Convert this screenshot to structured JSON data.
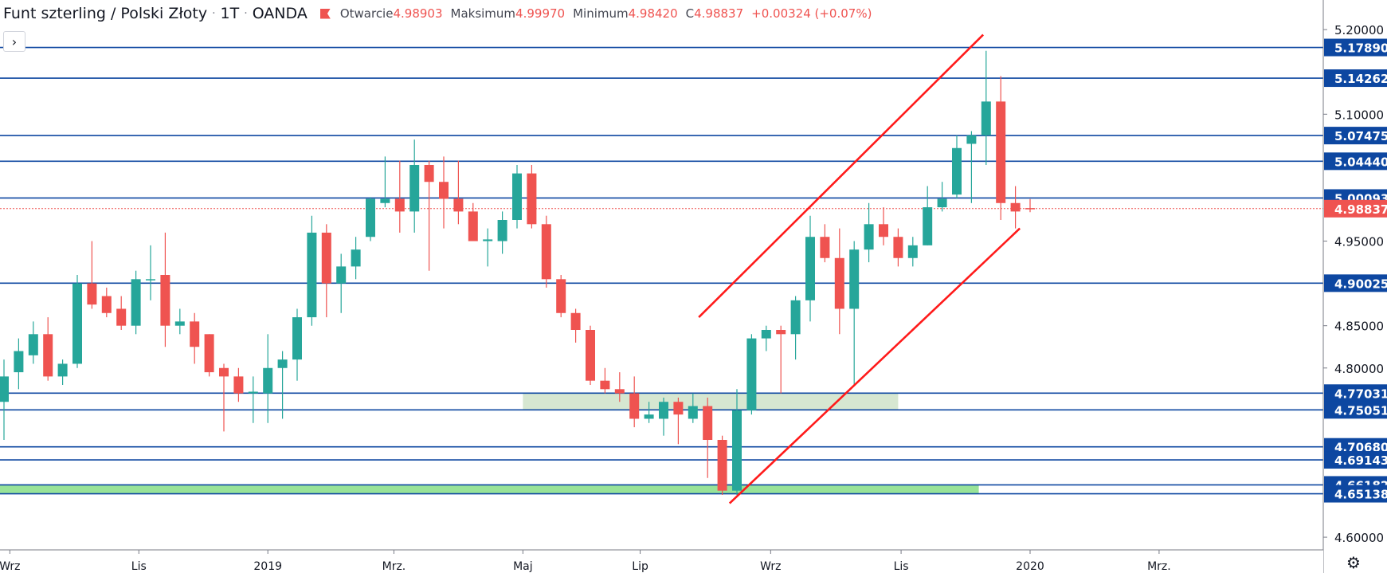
{
  "legend": {
    "symbol_name": "Funt szterling / Polski Złoty",
    "interval": "1T",
    "source": "OANDA",
    "open_label": "Otwarcie",
    "open_value": "4.98903",
    "high_label": "Maksimum",
    "high_value": "4.99970",
    "low_label": "Minimum",
    "low_value": "4.98420",
    "close_label": "C",
    "close_value": "4.98837",
    "change": "+0.00324 (+0.07%)"
  },
  "toolbar": {
    "toggle_icon": "chevron-right-icon",
    "settings_icon": "gear-icon"
  },
  "colors": {
    "up": "#26a69a",
    "down": "#ef5350",
    "hline": "#0d47a1",
    "trend": "#ff1a1a",
    "zone_support": "#8de08d",
    "zone_gray": "#c8dfc2"
  },
  "chart_data": {
    "type": "candlestick",
    "ylim": [
      4.585,
      5.235
    ],
    "y_ticks": [
      "5.20000",
      "5.10000",
      "4.95000",
      "4.85000",
      "4.80000",
      "4.60000"
    ],
    "x_labels": [
      {
        "label": "Wrz",
        "idx": 0.4
      },
      {
        "label": "Lis",
        "idx": 9.2
      },
      {
        "label": "2019",
        "idx": 18.0
      },
      {
        "label": "Mrz.",
        "idx": 26.6
      },
      {
        "label": "Maj",
        "idx": 35.4
      },
      {
        "label": "Lip",
        "idx": 43.4
      },
      {
        "label": "Wrz",
        "idx": 52.3
      },
      {
        "label": "Lis",
        "idx": 61.2
      },
      {
        "label": "2020",
        "idx": 70.0
      },
      {
        "label": "Mrz.",
        "idx": 78.8
      }
    ],
    "candles": [
      {
        "o": 4.76,
        "h": 4.81,
        "l": 4.715,
        "c": 4.79
      },
      {
        "o": 4.795,
        "h": 4.835,
        "l": 4.775,
        "c": 4.82
      },
      {
        "o": 4.815,
        "h": 4.855,
        "l": 4.805,
        "c": 4.84
      },
      {
        "o": 4.84,
        "h": 4.86,
        "l": 4.785,
        "c": 4.79
      },
      {
        "o": 4.79,
        "h": 4.81,
        "l": 4.78,
        "c": 4.805
      },
      {
        "o": 4.805,
        "h": 4.91,
        "l": 4.8,
        "c": 4.9
      },
      {
        "o": 4.9,
        "h": 4.95,
        "l": 4.87,
        "c": 4.875
      },
      {
        "o": 4.885,
        "h": 4.895,
        "l": 4.86,
        "c": 4.865
      },
      {
        "o": 4.87,
        "h": 4.885,
        "l": 4.845,
        "c": 4.85
      },
      {
        "o": 4.85,
        "h": 4.915,
        "l": 4.84,
        "c": 4.905
      },
      {
        "o": 4.905,
        "h": 4.945,
        "l": 4.88,
        "c": 4.905
      },
      {
        "o": 4.91,
        "h": 4.96,
        "l": 4.825,
        "c": 4.85
      },
      {
        "o": 4.85,
        "h": 4.87,
        "l": 4.84,
        "c": 4.855
      },
      {
        "o": 4.855,
        "h": 4.865,
        "l": 4.805,
        "c": 4.825
      },
      {
        "o": 4.84,
        "h": 4.84,
        "l": 4.79,
        "c": 4.795
      },
      {
        "o": 4.8,
        "h": 4.805,
        "l": 4.725,
        "c": 4.79
      },
      {
        "o": 4.79,
        "h": 4.8,
        "l": 4.76,
        "c": 4.77
      },
      {
        "o": 4.77,
        "h": 4.79,
        "l": 4.735,
        "c": 4.772
      },
      {
        "o": 4.77,
        "h": 4.84,
        "l": 4.735,
        "c": 4.8
      },
      {
        "o": 4.8,
        "h": 4.82,
        "l": 4.74,
        "c": 4.81
      },
      {
        "o": 4.81,
        "h": 4.87,
        "l": 4.785,
        "c": 4.86
      },
      {
        "o": 4.86,
        "h": 4.98,
        "l": 4.85,
        "c": 4.96
      },
      {
        "o": 4.96,
        "h": 4.97,
        "l": 4.86,
        "c": 4.9
      },
      {
        "o": 4.9,
        "h": 4.935,
        "l": 4.865,
        "c": 4.92
      },
      {
        "o": 4.92,
        "h": 4.955,
        "l": 4.905,
        "c": 4.94
      },
      {
        "o": 4.955,
        "h": 5.002,
        "l": 4.95,
        "c": 5.0
      },
      {
        "o": 4.995,
        "h": 5.05,
        "l": 4.99,
        "c": 5.0
      },
      {
        "o": 5.0,
        "h": 5.045,
        "l": 4.96,
        "c": 4.985
      },
      {
        "o": 4.985,
        "h": 5.07,
        "l": 4.96,
        "c": 5.04
      },
      {
        "o": 5.04,
        "h": 5.045,
        "l": 4.915,
        "c": 5.02
      },
      {
        "o": 5.02,
        "h": 5.05,
        "l": 4.965,
        "c": 5.0
      },
      {
        "o": 5.0,
        "h": 5.045,
        "l": 4.97,
        "c": 4.985
      },
      {
        "o": 4.985,
        "h": 4.995,
        "l": 4.955,
        "c": 4.95
      },
      {
        "o": 4.95,
        "h": 4.965,
        "l": 4.92,
        "c": 4.952
      },
      {
        "o": 4.95,
        "h": 4.985,
        "l": 4.935,
        "c": 4.975
      },
      {
        "o": 4.975,
        "h": 5.04,
        "l": 4.965,
        "c": 5.03
      },
      {
        "o": 5.03,
        "h": 5.04,
        "l": 4.965,
        "c": 4.97
      },
      {
        "o": 4.97,
        "h": 4.98,
        "l": 4.895,
        "c": 4.905
      },
      {
        "o": 4.905,
        "h": 4.91,
        "l": 4.86,
        "c": 4.865
      },
      {
        "o": 4.865,
        "h": 4.87,
        "l": 4.83,
        "c": 4.845
      },
      {
        "o": 4.845,
        "h": 4.85,
        "l": 4.78,
        "c": 4.785
      },
      {
        "o": 4.785,
        "h": 4.8,
        "l": 4.77,
        "c": 4.775
      },
      {
        "o": 4.775,
        "h": 4.795,
        "l": 4.76,
        "c": 4.77
      },
      {
        "o": 4.77,
        "h": 4.79,
        "l": 4.73,
        "c": 4.74
      },
      {
        "o": 4.74,
        "h": 4.76,
        "l": 4.735,
        "c": 4.745
      },
      {
        "o": 4.74,
        "h": 4.765,
        "l": 4.72,
        "c": 4.76
      },
      {
        "o": 4.76,
        "h": 4.765,
        "l": 4.71,
        "c": 4.745
      },
      {
        "o": 4.74,
        "h": 4.77,
        "l": 4.735,
        "c": 4.755
      },
      {
        "o": 4.755,
        "h": 4.765,
        "l": 4.67,
        "c": 4.715
      },
      {
        "o": 4.715,
        "h": 4.72,
        "l": 4.65,
        "c": 4.655
      },
      {
        "o": 4.655,
        "h": 4.775,
        "l": 4.65,
        "c": 4.75
      },
      {
        "o": 4.75,
        "h": 4.84,
        "l": 4.745,
        "c": 4.835
      },
      {
        "o": 4.835,
        "h": 4.85,
        "l": 4.82,
        "c": 4.845
      },
      {
        "o": 4.845,
        "h": 4.85,
        "l": 4.77,
        "c": 4.84
      },
      {
        "o": 4.84,
        "h": 4.885,
        "l": 4.81,
        "c": 4.88
      },
      {
        "o": 4.88,
        "h": 4.98,
        "l": 4.855,
        "c": 4.955
      },
      {
        "o": 4.955,
        "h": 4.97,
        "l": 4.925,
        "c": 4.93
      },
      {
        "o": 4.93,
        "h": 4.965,
        "l": 4.84,
        "c": 4.87
      },
      {
        "o": 4.87,
        "h": 4.95,
        "l": 4.78,
        "c": 4.94
      },
      {
        "o": 4.94,
        "h": 4.995,
        "l": 4.925,
        "c": 4.97
      },
      {
        "o": 4.97,
        "h": 4.99,
        "l": 4.945,
        "c": 4.955
      },
      {
        "o": 4.955,
        "h": 4.965,
        "l": 4.92,
        "c": 4.93
      },
      {
        "o": 4.93,
        "h": 4.955,
        "l": 4.92,
        "c": 4.945
      },
      {
        "o": 4.945,
        "h": 5.015,
        "l": 4.945,
        "c": 4.99
      },
      {
        "o": 4.99,
        "h": 5.02,
        "l": 4.985,
        "c": 5.0
      },
      {
        "o": 5.005,
        "h": 5.075,
        "l": 5.0,
        "c": 5.06
      },
      {
        "o": 5.065,
        "h": 5.08,
        "l": 4.995,
        "c": 5.075
      },
      {
        "o": 5.075,
        "h": 5.175,
        "l": 5.04,
        "c": 5.115
      },
      {
        "o": 5.115,
        "h": 5.145,
        "l": 4.975,
        "c": 4.995
      },
      {
        "o": 4.995,
        "h": 5.015,
        "l": 4.965,
        "c": 4.985
      },
      {
        "o": 4.989,
        "h": 4.9997,
        "l": 4.9842,
        "c": 4.98837
      }
    ],
    "horizontal_levels": [
      "5.17890",
      "5.14262",
      "5.07475",
      "5.04440",
      "5.00093",
      "4.90025",
      "4.77031",
      "4.75051",
      "4.70680",
      "4.69143",
      "4.66182",
      "4.65138"
    ],
    "current_price": "4.98837",
    "zones": [
      {
        "name": "gray-zone",
        "from_idx": 35.4,
        "to_idx": 61.0,
        "y_low": 4.75051,
        "y_high": 4.77031
      },
      {
        "name": "support-zone",
        "from_idx": -1,
        "to_idx": 66.5,
        "y_low": 4.65138,
        "y_high": 4.66182
      }
    ],
    "trendlines": [
      {
        "name": "channel-upper",
        "x1": 47.4,
        "y1": 4.86,
        "x2": 66.8,
        "y2": 5.194
      },
      {
        "name": "channel-lower",
        "x1": 49.5,
        "y1": 4.64,
        "x2": 69.3,
        "y2": 4.965
      }
    ]
  }
}
